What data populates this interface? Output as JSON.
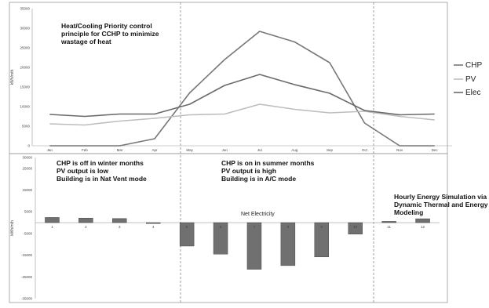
{
  "chart_data": [
    {
      "type": "line",
      "categories": [
        "Jan",
        "Feb",
        "Mar",
        "Apr",
        "May",
        "Jun",
        "Jul",
        "Aug",
        "Sep",
        "Oct",
        "Nov",
        "Dec"
      ],
      "ylabel": "kWh/mth",
      "ylim": [
        0,
        35000
      ],
      "yticks": [
        "0",
        "5000",
        "10000",
        "15000",
        "20000",
        "25000",
        "30000",
        "35000"
      ],
      "grid": false,
      "legend_position": "right",
      "annotation": [
        "Heat/Cooling Priority control",
        "principle for CCHP to minimize",
        "wastage of heat"
      ],
      "series": [
        {
          "name": "CHP",
          "color": "#777777",
          "values": [
            0,
            0,
            0,
            1800,
            13500,
            22000,
            29200,
            26500,
            21200,
            5800,
            0,
            0
          ]
        },
        {
          "name": "PV",
          "color": "#bdbdbd",
          "values": [
            5600,
            5300,
            6300,
            7000,
            7900,
            8100,
            10600,
            9300,
            8400,
            8800,
            7500,
            6600
          ]
        },
        {
          "name": "Elec",
          "color": "#6a6a6a",
          "values": [
            8000,
            7500,
            8100,
            8100,
            10600,
            15400,
            18200,
            15600,
            13400,
            9000,
            7900,
            8100
          ]
        }
      ]
    },
    {
      "type": "bar",
      "title": "Net Electricity",
      "ylabel": "kWh/mth",
      "ylim": [
        -35000,
        30000
      ],
      "yticks": [
        "30000",
        "25000",
        "15000",
        "5000",
        "-5000",
        "-15000",
        "-25000",
        "-35000"
      ],
      "categories": [
        "1",
        "2",
        "3",
        "4",
        "5",
        "6",
        "7",
        "8",
        "9",
        "10",
        "11",
        "12"
      ],
      "values": [
        2400,
        2100,
        1900,
        -400,
        -10800,
        -14500,
        -21500,
        -19800,
        -15800,
        -5300,
        600,
        1800
      ],
      "bar_color": "#707070"
    }
  ],
  "annotations": {
    "winter": [
      "CHP is off in winter months",
      "PV output is low",
      "Building is in Nat Vent mode"
    ],
    "summer": [
      "CHP is on in summer months",
      "PV output is high",
      "Building is in A/C mode"
    ],
    "simulation": [
      "Hourly Energy Simulation via",
      "Dynamic Thermal and Energy",
      "Modeling"
    ]
  }
}
